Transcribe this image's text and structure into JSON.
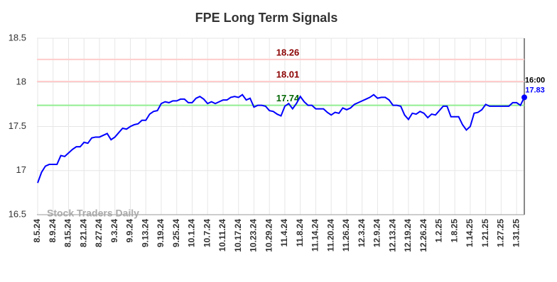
{
  "chart_data": {
    "type": "line",
    "title": "FPE Long Term Signals",
    "watermark": "Stock Traders Daily",
    "last_time_label": "16:00",
    "categories": [
      "8.5.24",
      null,
      null,
      null,
      "8.9.24",
      null,
      null,
      null,
      "8.15.24",
      null,
      null,
      null,
      "8.21.24",
      null,
      null,
      null,
      "8.27.24",
      null,
      null,
      null,
      "9.3.24",
      null,
      null,
      null,
      "9.9.24",
      null,
      null,
      null,
      "9.13.24",
      null,
      null,
      null,
      "9.19.24",
      null,
      null,
      null,
      "9.25.24",
      null,
      null,
      null,
      "10.1.24",
      null,
      null,
      null,
      "10.7.24",
      null,
      null,
      null,
      "10.11.24",
      null,
      null,
      null,
      "10.17.24",
      null,
      null,
      null,
      "10.23.24",
      null,
      null,
      null,
      "10.29.24",
      null,
      null,
      null,
      "11.4.24",
      null,
      null,
      null,
      "11.8.24",
      null,
      null,
      null,
      "11.14.24",
      null,
      null,
      null,
      "11.20.24",
      null,
      null,
      null,
      "11.26.24",
      null,
      null,
      null,
      "12.3.24",
      null,
      null,
      null,
      "12.9.24",
      null,
      null,
      null,
      "12.13.24",
      null,
      null,
      null,
      "12.19.24",
      null,
      null,
      null,
      "12.26.24",
      null,
      null,
      null,
      "1.2.25",
      null,
      null,
      null,
      "1.8.25",
      null,
      null,
      null,
      "1.14.25",
      null,
      null,
      null,
      "1.21.25",
      null,
      null,
      null,
      "1.27.25",
      null,
      null,
      null,
      "1.31.25",
      null,
      null
    ],
    "series": [
      {
        "color": "#0000ff",
        "values": [
          16.86,
          16.98,
          17.05,
          17.07,
          17.07,
          17.07,
          17.17,
          17.16,
          17.2,
          17.24,
          17.27,
          17.27,
          17.32,
          17.31,
          17.37,
          17.38,
          17.38,
          17.4,
          17.42,
          17.35,
          17.38,
          17.43,
          17.48,
          17.47,
          17.5,
          17.52,
          17.53,
          17.57,
          17.57,
          17.64,
          17.67,
          17.68,
          17.76,
          17.78,
          17.77,
          17.79,
          17.79,
          17.81,
          17.81,
          17.77,
          17.77,
          17.82,
          17.84,
          17.81,
          17.76,
          17.78,
          17.76,
          17.78,
          17.8,
          17.8,
          17.83,
          17.84,
          17.83,
          17.86,
          17.8,
          17.82,
          17.72,
          17.74,
          17.74,
          17.73,
          17.68,
          17.67,
          17.64,
          17.62,
          17.73,
          17.76,
          17.7,
          17.76,
          17.84,
          17.78,
          17.74,
          17.74,
          17.7,
          17.7,
          17.7,
          17.66,
          17.63,
          17.66,
          17.65,
          17.71,
          17.69,
          17.71,
          17.75,
          17.77,
          17.79,
          17.81,
          17.83,
          17.86,
          17.82,
          17.83,
          17.83,
          17.8,
          17.74,
          17.74,
          17.73,
          17.63,
          17.58,
          17.65,
          17.64,
          17.67,
          17.65,
          17.6,
          17.64,
          17.63,
          17.68,
          17.73,
          17.73,
          17.61,
          17.61,
          17.61,
          17.52,
          17.46,
          17.5,
          17.65,
          17.66,
          17.69,
          17.75,
          17.73,
          17.73,
          17.73,
          17.73,
          17.73,
          17.73,
          17.77,
          17.77,
          17.74,
          17.83
        ]
      }
    ],
    "hlines": [
      {
        "value": 18.26,
        "color": "#ffcccc",
        "label_color": "#8b0000"
      },
      {
        "value": 18.01,
        "color": "#ffcccc",
        "label_color": "#8b0000"
      },
      {
        "value": 17.74,
        "color": "#90ee90",
        "label_color": "#006400"
      }
    ],
    "ylim": [
      16.5,
      18.5
    ],
    "yticks": [
      16.5,
      17,
      17.5,
      18,
      18.5
    ],
    "grid": true
  }
}
